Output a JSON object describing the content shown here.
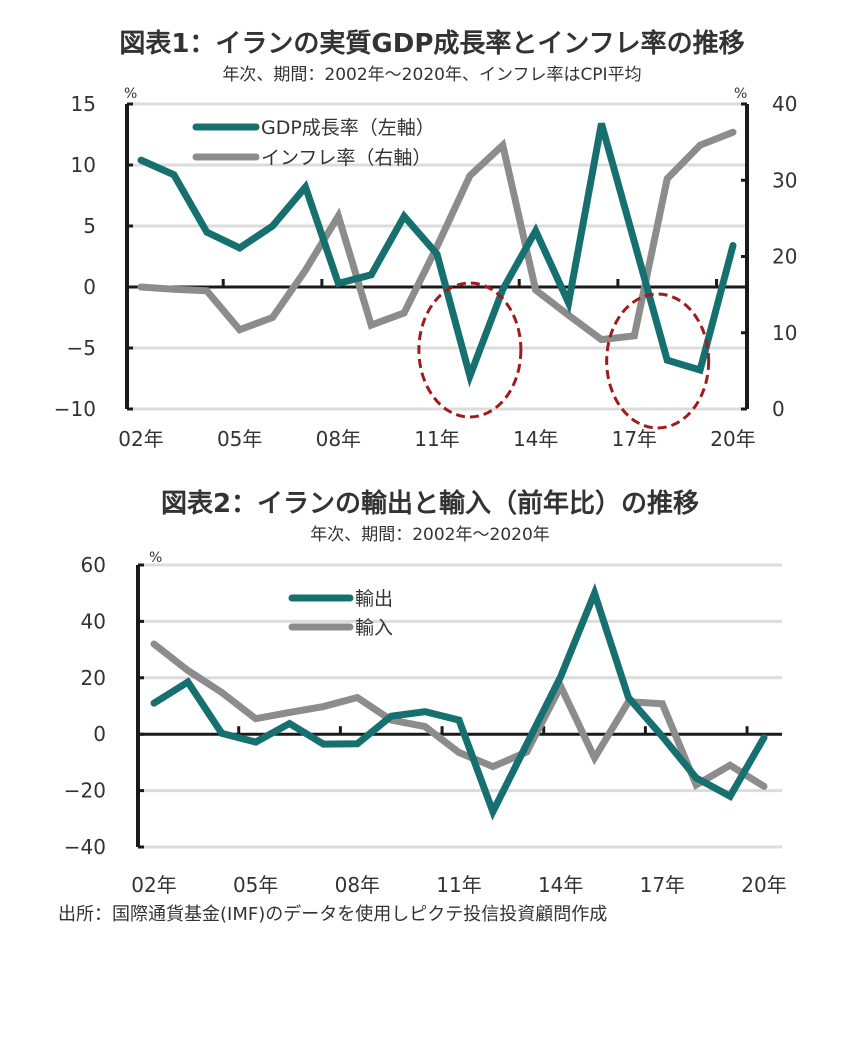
{
  "colors": {
    "gdp": "#15706f",
    "inflation": "#8c8c8c",
    "exports": "#15706f",
    "imports": "#8c8c8c",
    "highlight": "#a01c1c",
    "grid": "#dcdcdc",
    "axis": "#1a1a1a"
  },
  "source_note": "出所：国際通貨基金(IMF)のデータを使用しピクテ投信投資顧問作成",
  "chart_data": [
    {
      "type": "line",
      "title": "図表1：イランの実質GDP成長率とインフレ率の推移",
      "subtitle": "年次、期間：2002年～2020年、インフレ率はCPI平均",
      "x": [
        2002,
        2003,
        2004,
        2005,
        2006,
        2007,
        2008,
        2009,
        2010,
        2011,
        2012,
        2013,
        2014,
        2015,
        2016,
        2017,
        2018,
        2019,
        2020
      ],
      "xtick_labels": [
        "02年",
        "05年",
        "08年",
        "11年",
        "14年",
        "17年",
        "20年"
      ],
      "xtick_years": [
        2002,
        2005,
        2008,
        2011,
        2014,
        2017,
        2020
      ],
      "ylabel_left": "%",
      "ylabel_right": "%",
      "ylim_left": [
        -10,
        15
      ],
      "ylim_right": [
        0,
        40
      ],
      "yticks_left": [
        "15",
        "10",
        "5",
        "0",
        "−5",
        "−10"
      ],
      "yticks_left_values": [
        15,
        10,
        5,
        0,
        -5,
        -10
      ],
      "yticks_right": [
        "40",
        "30",
        "20",
        "10",
        "0"
      ],
      "yticks_right_values": [
        40,
        30,
        20,
        10,
        0
      ],
      "grid": true,
      "legend_position": "top-left",
      "series": [
        {
          "name": "GDP成長率（左軸）",
          "axis": "left",
          "values": [
            10.4,
            9.2,
            4.5,
            3.2,
            5.0,
            8.2,
            0.3,
            1.0,
            5.8,
            2.7,
            -7.3,
            -0.2,
            4.6,
            -1.3,
            13.4,
            3.7,
            -6.0,
            -6.8,
            3.4
          ]
        },
        {
          "name": "インフレ率（右軸）",
          "axis": "right",
          "values": [
            16.0,
            15.7,
            15.5,
            10.4,
            12.0,
            18.2,
            25.3,
            11.0,
            12.6,
            21.3,
            30.6,
            34.6,
            15.6,
            12.3,
            9.1,
            9.6,
            30.2,
            34.6,
            36.3
          ]
        }
      ],
      "annotations": [
        {
          "type": "dashed-ellipse",
          "around_years": [
            2012
          ]
        },
        {
          "type": "dashed-ellipse",
          "around_years": [
            2018,
            2019
          ]
        }
      ]
    },
    {
      "type": "line",
      "title": "図表2：イランの輸出と輸入（前年比）の推移",
      "subtitle": "年次、期間：2002年～2020年",
      "x": [
        2002,
        2003,
        2004,
        2005,
        2006,
        2007,
        2008,
        2009,
        2010,
        2011,
        2012,
        2013,
        2014,
        2015,
        2016,
        2017,
        2018,
        2019,
        2020
      ],
      "xtick_labels": [
        "02年",
        "05年",
        "08年",
        "11年",
        "14年",
        "17年",
        "20年"
      ],
      "xtick_years": [
        2002,
        2005,
        2008,
        2011,
        2014,
        2017,
        2020
      ],
      "ylabel": "%",
      "ylim": [
        -40,
        60
      ],
      "yticks": [
        "60",
        "40",
        "20",
        "0",
        "−20",
        "−40"
      ],
      "yticks_values": [
        60,
        40,
        20,
        0,
        -20,
        -40
      ],
      "grid": true,
      "legend_position": "top-center",
      "series": [
        {
          "name": "輸出",
          "values": [
            11,
            18.5,
            0.3,
            -2.8,
            3.8,
            -3.5,
            -3.4,
            6.4,
            8,
            5,
            -27.5,
            -3.5,
            20.4,
            50,
            13,
            -0.8,
            -15.5,
            -22,
            -1.2
          ]
        },
        {
          "name": "輸入",
          "values": [
            32,
            22.6,
            14.8,
            5.5,
            7.7,
            9.8,
            13,
            5,
            2.7,
            -6.5,
            -11.5,
            -6.3,
            17,
            -8.4,
            11.5,
            10.8,
            -18,
            -11,
            -18.5
          ]
        }
      ]
    }
  ]
}
